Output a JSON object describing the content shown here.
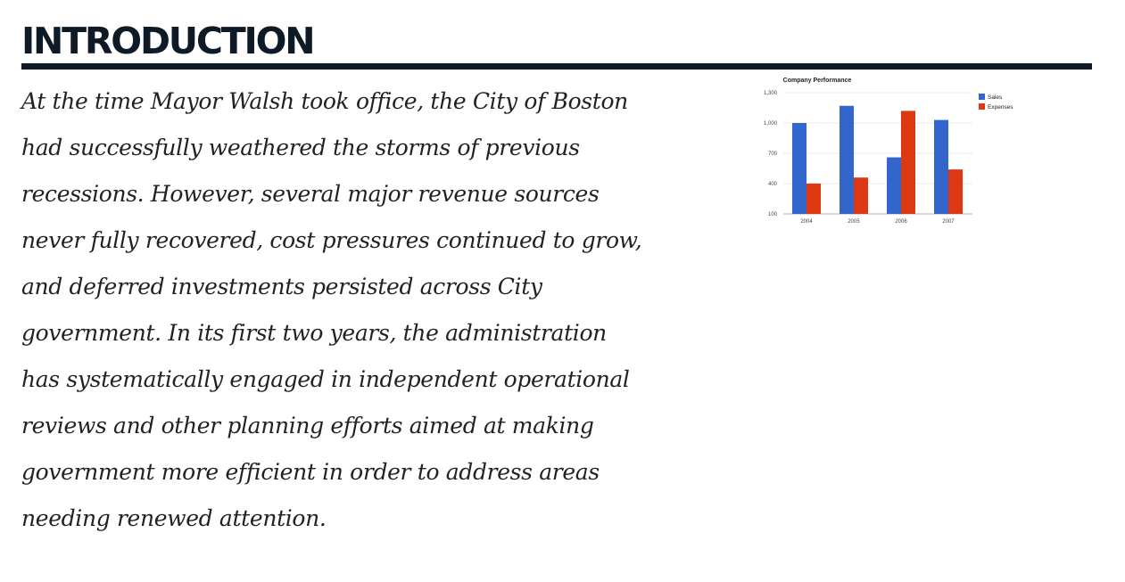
{
  "section": {
    "title": "INTRODUCTION"
  },
  "body": {
    "lines": [
      "At the time Mayor Walsh took office, the City of Boston",
      "had successfully weathered the storms of previous",
      "recessions. However, several major revenue sources",
      "never fully recovered, cost pressures continued to grow,",
      "and deferred investments persisted across City",
      "government. In its first two years, the administration",
      "has systematically engaged in independent operational",
      "reviews and other planning efforts aimed at making",
      "government more efficient in order to address areas",
      "needing renewed attention."
    ]
  },
  "chart_data": {
    "type": "bar",
    "title": "Company Performance",
    "categories": [
      "2004",
      "2005",
      "2006",
      "2007"
    ],
    "series": [
      {
        "name": "Sales",
        "values": [
          1000,
          1170,
          660,
          1030
        ],
        "color": "#3366cc"
      },
      {
        "name": "Expenses",
        "values": [
          400,
          460,
          1120,
          540
        ],
        "color": "#dc3912"
      }
    ],
    "y_ticks": [
      "1,300",
      "1,000",
      "700",
      "400",
      "100"
    ],
    "ylim": [
      100,
      1300
    ],
    "grid": true,
    "legend_position": "right"
  }
}
